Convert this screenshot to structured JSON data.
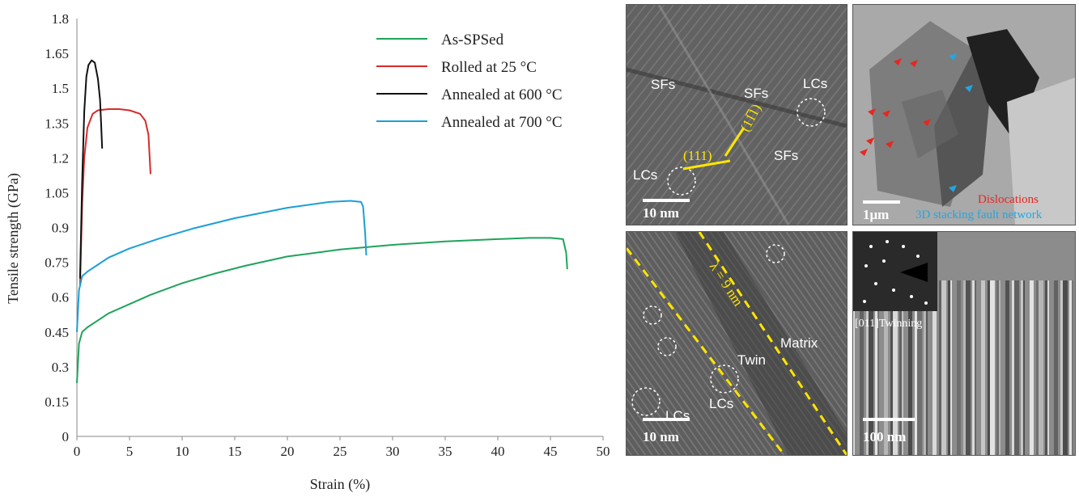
{
  "chart_data": {
    "type": "line",
    "xlabel": "Strain (%)",
    "ylabel": "Tensile strength (GPa)",
    "xlim": [
      0,
      50
    ],
    "ylim": [
      0,
      1.8
    ],
    "x_ticks": [
      "0",
      "5",
      "10",
      "15",
      "20",
      "25",
      "30",
      "35",
      "40",
      "45",
      "50"
    ],
    "y_ticks": [
      "0",
      "0.15",
      "0.3",
      "0.45",
      "0.6",
      "0.75",
      "0.9",
      "1.05",
      "1.2",
      "1.35",
      "1.5",
      "1.65",
      "1.8"
    ],
    "grid": false,
    "legend_position": "top-right",
    "series": [
      {
        "name": "As-SPSed",
        "color": "#1fa35c",
        "x": [
          0,
          0.2,
          0.5,
          1,
          2,
          3,
          5,
          7,
          10,
          13,
          16,
          20,
          25,
          30,
          35,
          40,
          43,
          45,
          46.2,
          46.5,
          46.6
        ],
        "y": [
          0.23,
          0.4,
          0.45,
          0.47,
          0.5,
          0.53,
          0.57,
          0.61,
          0.66,
          0.7,
          0.735,
          0.775,
          0.805,
          0.825,
          0.84,
          0.85,
          0.855,
          0.855,
          0.85,
          0.79,
          0.72
        ]
      },
      {
        "name": "Rolled at 25 °C",
        "color": "#d92b2b",
        "x": [
          0.3,
          0.5,
          0.7,
          1,
          1.5,
          2,
          3,
          4,
          5,
          6,
          6.5,
          6.8,
          7
        ],
        "y": [
          0.65,
          1.0,
          1.2,
          1.33,
          1.39,
          1.405,
          1.41,
          1.41,
          1.405,
          1.39,
          1.36,
          1.3,
          1.13
        ]
      },
      {
        "name": "Annealed at 600 °C",
        "color": "#111111",
        "x": [
          0.3,
          0.5,
          0.7,
          0.9,
          1.1,
          1.4,
          1.7,
          2,
          2.2,
          2.3,
          2.4
        ],
        "y": [
          0.68,
          1.1,
          1.4,
          1.55,
          1.6,
          1.62,
          1.61,
          1.54,
          1.45,
          1.35,
          1.24
        ]
      },
      {
        "name": "Annealed at 700 °C",
        "color": "#1a9fd6",
        "x": [
          0,
          0.2,
          0.5,
          1,
          2,
          3,
          5,
          8,
          11,
          15,
          20,
          24,
          26,
          27,
          27.2,
          27.4,
          27.5
        ],
        "y": [
          0.45,
          0.63,
          0.69,
          0.71,
          0.74,
          0.77,
          0.81,
          0.855,
          0.895,
          0.94,
          0.985,
          1.01,
          1.015,
          1.01,
          0.99,
          0.87,
          0.78
        ]
      }
    ]
  },
  "micrographs": {
    "top_left": {
      "scale": "10 nm",
      "labels": [
        "SFs",
        "SFs",
        "LCs",
        "LCs",
        "SFs",
        "(111)",
        "(11̅̅1)"
      ]
    },
    "top_right": {
      "scale": "1μm",
      "legend_red": "Dislocations",
      "legend_blue": "3D stacking fault network"
    },
    "bottom_left": {
      "scale": "10 nm",
      "labels": [
        "λ = 9 nm",
        "Matrix",
        "Twin",
        "LCs",
        "LCs"
      ]
    },
    "bottom_right": {
      "scale": "100 nm",
      "inset_label": "[011]Twinning"
    }
  }
}
